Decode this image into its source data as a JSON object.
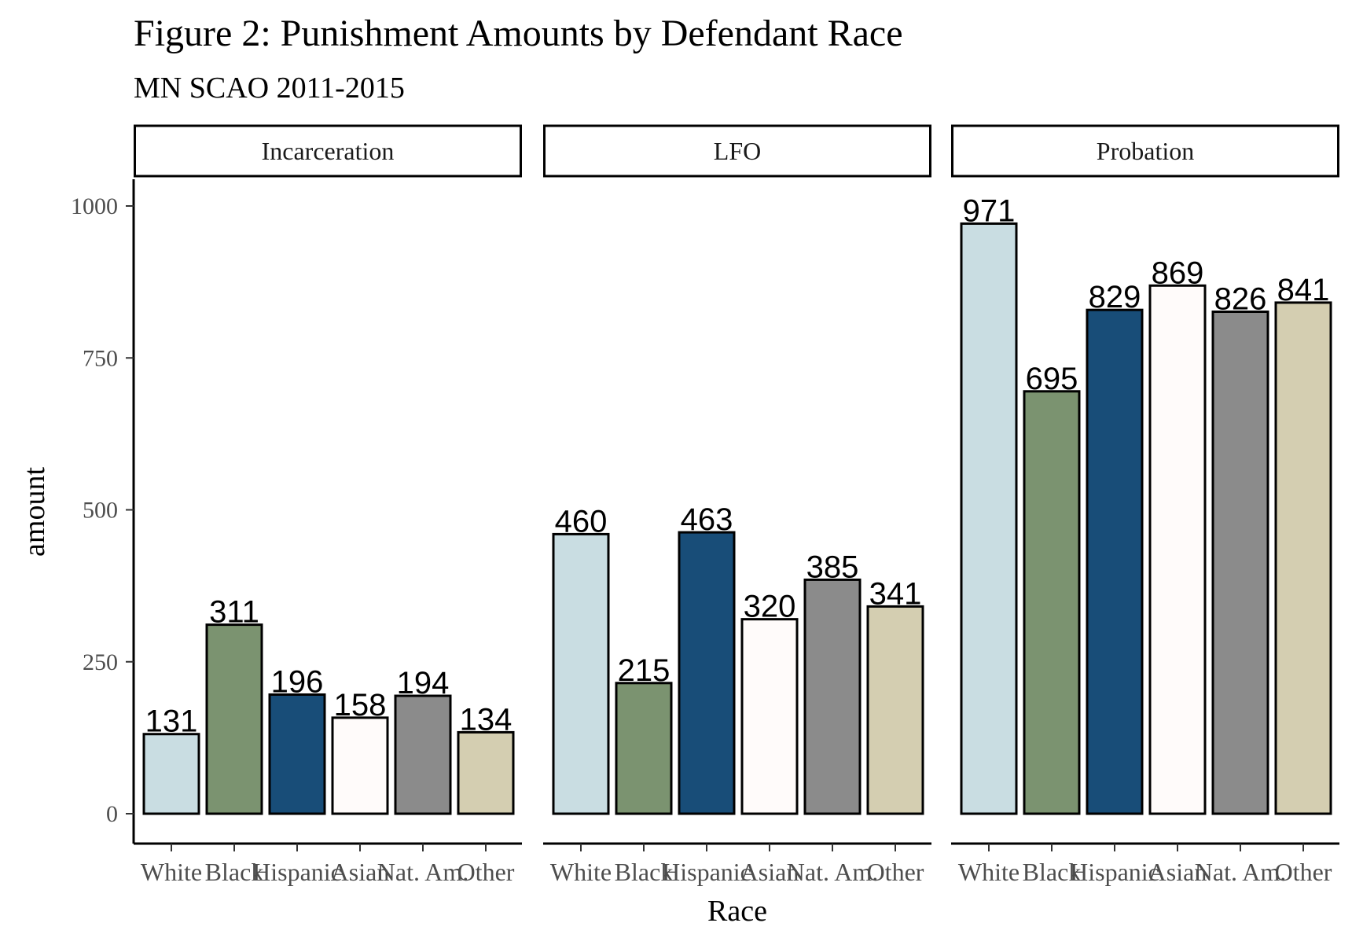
{
  "chart_data": {
    "type": "bar",
    "title": "Figure 2: Punishment Amounts by Defendant Race",
    "subtitle": "MN SCAO 2011-2015",
    "xlabel": "Race",
    "ylabel": "amount",
    "ylim": [
      -50,
      1050
    ],
    "yticks": [
      0,
      250,
      500,
      750,
      1000
    ],
    "grid": false,
    "legend": "none",
    "categories": [
      "White",
      "Black",
      "Hispanic",
      "Asian",
      "Nat. Am.",
      "Other"
    ],
    "category_colors": [
      "#c9dde2",
      "#7b9370",
      "#184d78",
      "#fffbfa",
      "#8b8b8b",
      "#d4ceb1"
    ],
    "facets": [
      {
        "name": "Incarceration",
        "values": [
          131,
          311,
          196,
          158,
          194,
          134
        ]
      },
      {
        "name": "LFO",
        "values": [
          460,
          215,
          463,
          320,
          385,
          341
        ]
      },
      {
        "name": "Probation",
        "values": [
          971,
          695,
          829,
          869,
          826,
          841
        ]
      }
    ]
  }
}
